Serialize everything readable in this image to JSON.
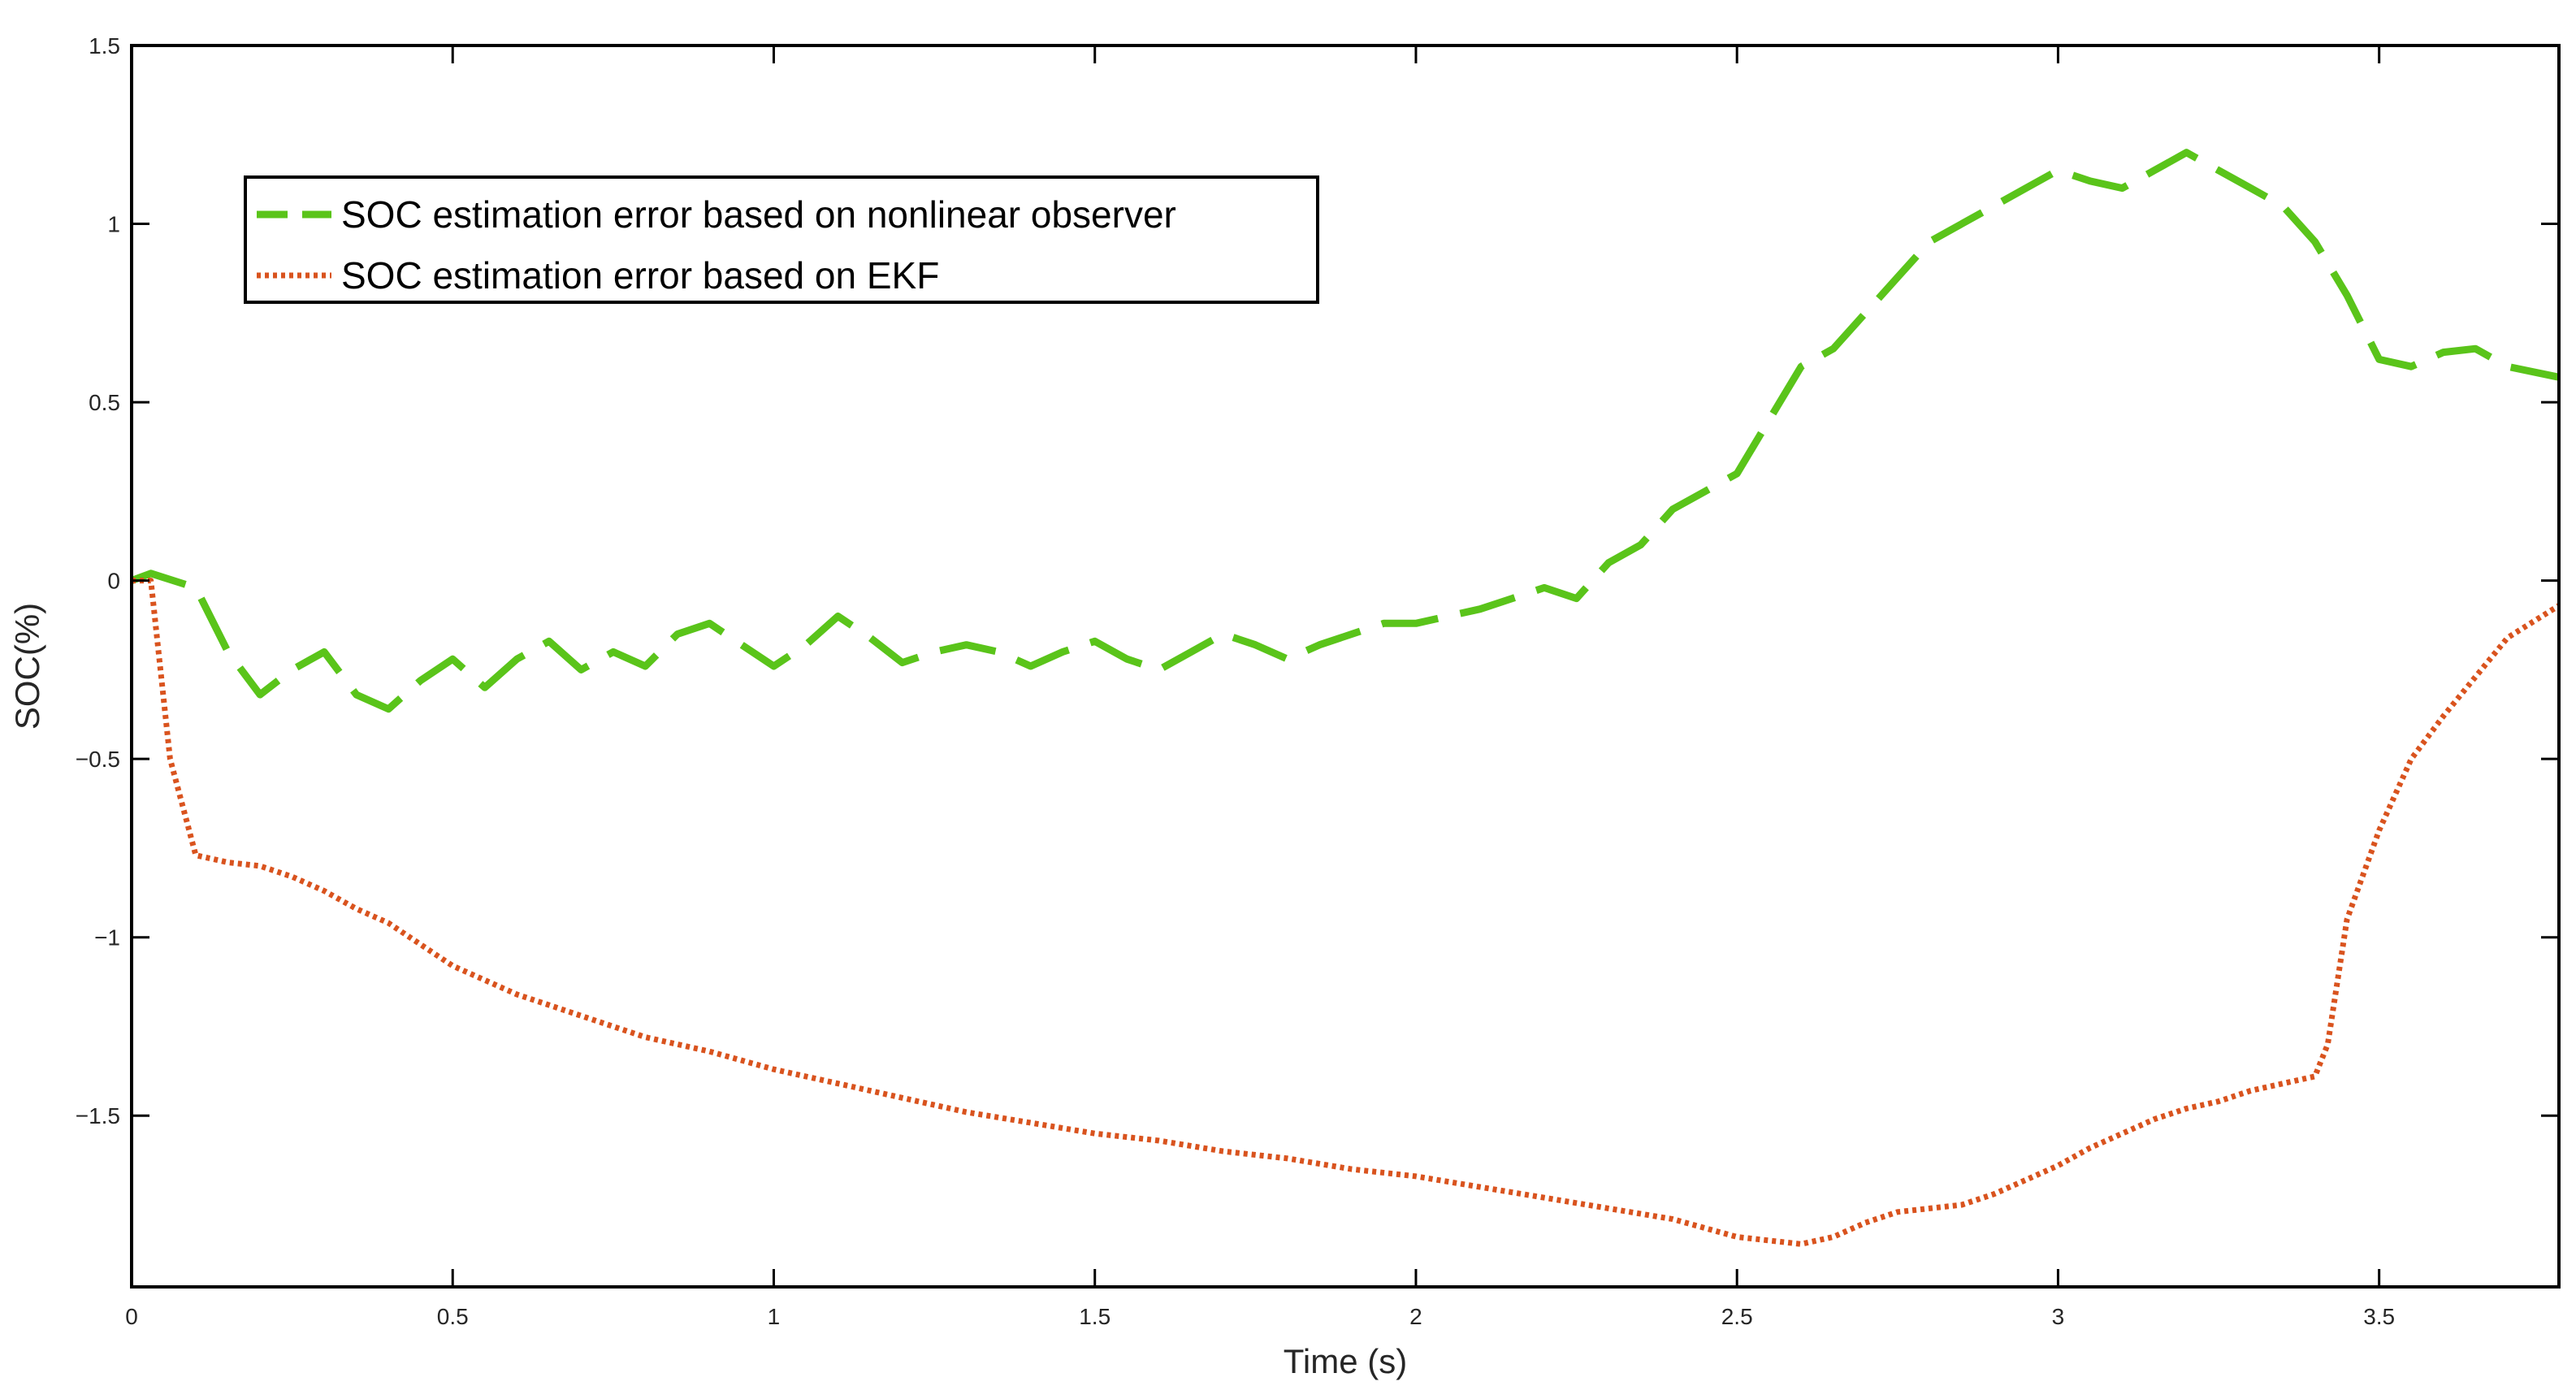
{
  "chart_data": {
    "type": "line",
    "title": "",
    "xlabel": "Time (s)",
    "ylabel": "SOC(%)",
    "xlim": [
      0,
      3.78
    ],
    "ylim": [
      -1.98,
      1.5
    ],
    "xticks": [
      0,
      0.5,
      1,
      1.5,
      2,
      2.5,
      3,
      3.5
    ],
    "xtick_labels": [
      "0",
      "0.5",
      "1",
      "1.5",
      "2",
      "2.5",
      "3",
      "3.5"
    ],
    "yticks": [
      1.5,
      1,
      0.5,
      0,
      -0.5,
      -1,
      -1.5
    ],
    "ytick_labels": [
      "1.5",
      "1",
      "0.5",
      "0",
      "−0.5",
      "−1",
      "−1.5"
    ],
    "grid": false,
    "legend_position": "top-left",
    "series": [
      {
        "name": "SOC estimation error based on nonlinear observer",
        "color": "#5ac41a",
        "line_style": "dashed",
        "x": [
          0,
          0.03,
          0.1,
          0.15,
          0.2,
          0.25,
          0.3,
          0.35,
          0.4,
          0.45,
          0.5,
          0.55,
          0.6,
          0.65,
          0.7,
          0.75,
          0.8,
          0.85,
          0.9,
          0.95,
          1.0,
          1.05,
          1.1,
          1.15,
          1.2,
          1.25,
          1.3,
          1.35,
          1.4,
          1.45,
          1.5,
          1.55,
          1.6,
          1.65,
          1.7,
          1.75,
          1.8,
          1.85,
          1.9,
          1.95,
          2.0,
          2.05,
          2.1,
          2.15,
          2.2,
          2.25,
          2.3,
          2.35,
          2.4,
          2.45,
          2.5,
          2.55,
          2.6,
          2.65,
          2.7,
          2.75,
          2.8,
          2.85,
          2.9,
          2.95,
          3.0,
          3.05,
          3.1,
          3.15,
          3.2,
          3.25,
          3.3,
          3.35,
          3.4,
          3.45,
          3.5,
          3.55,
          3.6,
          3.65,
          3.7,
          3.78
        ],
        "y": [
          0.0,
          0.02,
          -0.02,
          -0.2,
          -0.32,
          -0.25,
          -0.2,
          -0.32,
          -0.36,
          -0.28,
          -0.22,
          -0.3,
          -0.22,
          -0.17,
          -0.25,
          -0.2,
          -0.24,
          -0.15,
          -0.12,
          -0.18,
          -0.24,
          -0.18,
          -0.1,
          -0.16,
          -0.23,
          -0.2,
          -0.18,
          -0.2,
          -0.24,
          -0.2,
          -0.17,
          -0.22,
          -0.25,
          -0.2,
          -0.15,
          -0.18,
          -0.22,
          -0.18,
          -0.15,
          -0.12,
          -0.12,
          -0.1,
          -0.08,
          -0.05,
          -0.02,
          -0.05,
          0.05,
          0.1,
          0.2,
          0.25,
          0.3,
          0.45,
          0.6,
          0.65,
          0.75,
          0.85,
          0.95,
          1.0,
          1.05,
          1.1,
          1.15,
          1.12,
          1.1,
          1.15,
          1.2,
          1.15,
          1.1,
          1.05,
          0.95,
          0.8,
          0.62,
          0.6,
          0.64,
          0.65,
          0.6,
          0.57
        ]
      },
      {
        "name": "SOC estimation error based on EKF",
        "color": "#d9531e",
        "line_style": "dotted",
        "x": [
          0,
          0.03,
          0.06,
          0.1,
          0.15,
          0.2,
          0.25,
          0.3,
          0.35,
          0.4,
          0.45,
          0.5,
          0.55,
          0.6,
          0.65,
          0.7,
          0.8,
          0.9,
          1.0,
          1.1,
          1.2,
          1.3,
          1.4,
          1.5,
          1.6,
          1.7,
          1.8,
          1.9,
          2.0,
          2.1,
          2.2,
          2.3,
          2.4,
          2.5,
          2.6,
          2.65,
          2.7,
          2.75,
          2.8,
          2.85,
          2.9,
          2.95,
          3.0,
          3.05,
          3.1,
          3.15,
          3.2,
          3.25,
          3.3,
          3.35,
          3.4,
          3.42,
          3.45,
          3.5,
          3.55,
          3.6,
          3.65,
          3.7,
          3.78
        ],
        "y": [
          0.0,
          0.0,
          -0.5,
          -0.77,
          -0.79,
          -0.8,
          -0.83,
          -0.87,
          -0.92,
          -0.96,
          -1.02,
          -1.08,
          -1.12,
          -1.16,
          -1.19,
          -1.22,
          -1.28,
          -1.32,
          -1.37,
          -1.41,
          -1.45,
          -1.49,
          -1.52,
          -1.55,
          -1.57,
          -1.6,
          -1.62,
          -1.65,
          -1.67,
          -1.7,
          -1.73,
          -1.76,
          -1.79,
          -1.84,
          -1.86,
          -1.84,
          -1.8,
          -1.77,
          -1.76,
          -1.75,
          -1.72,
          -1.68,
          -1.64,
          -1.59,
          -1.55,
          -1.51,
          -1.48,
          -1.46,
          -1.43,
          -1.41,
          -1.39,
          -1.3,
          -0.95,
          -0.7,
          -0.5,
          -0.38,
          -0.27,
          -0.16,
          -0.07
        ]
      }
    ]
  }
}
